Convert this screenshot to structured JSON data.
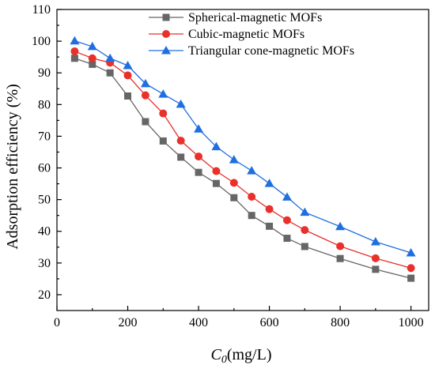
{
  "chart_data": {
    "type": "line",
    "xlabel": "C0(mg/L)",
    "xlabel_main": "C",
    "xlabel_sub": "0",
    "xlabel_unit": "(mg/L)",
    "ylabel": "Adsorption efficiency (%)",
    "xlim": [
      0,
      1050
    ],
    "ylim": [
      15,
      110
    ],
    "xticks": [
      0,
      200,
      400,
      600,
      800,
      1000
    ],
    "yticks": [
      20,
      30,
      40,
      50,
      60,
      70,
      80,
      90,
      100,
      110
    ],
    "grid": false,
    "legend_position": "top-right",
    "series": [
      {
        "name": "Spherical-magnetic MOFs",
        "color": "#666666",
        "marker": "square",
        "x": [
          50,
          100,
          150,
          200,
          250,
          300,
          350,
          400,
          450,
          500,
          550,
          600,
          650,
          700,
          800,
          900,
          1000
        ],
        "y": [
          94.6,
          92.7,
          90.0,
          82.7,
          74.6,
          68.5,
          63.4,
          58.6,
          55.1,
          50.6,
          45.0,
          41.6,
          37.8,
          35.2,
          31.4,
          28.0,
          25.2
        ]
      },
      {
        "name": "Cubic-magnetic MOFs",
        "color": "#e8312a",
        "marker": "circle",
        "x": [
          50,
          100,
          150,
          200,
          250,
          300,
          350,
          400,
          450,
          500,
          550,
          600,
          650,
          700,
          800,
          900,
          1000
        ],
        "y": [
          96.8,
          94.6,
          93.2,
          89.2,
          82.9,
          77.2,
          68.6,
          63.6,
          59.0,
          55.3,
          50.9,
          47.0,
          43.5,
          40.4,
          35.3,
          31.5,
          28.4
        ]
      },
      {
        "name": "Triangular cone-magnetic MOFs",
        "color": "#1f6fe0",
        "marker": "triangle",
        "x": [
          50,
          100,
          150,
          200,
          250,
          300,
          350,
          400,
          450,
          500,
          550,
          600,
          650,
          700,
          800,
          900,
          1000
        ],
        "y": [
          100.1,
          98.3,
          94.6,
          92.3,
          86.6,
          83.3,
          80.1,
          72.3,
          66.7,
          62.6,
          59.1,
          55.1,
          50.8,
          46.0,
          41.5,
          36.7,
          33.2
        ]
      }
    ]
  }
}
